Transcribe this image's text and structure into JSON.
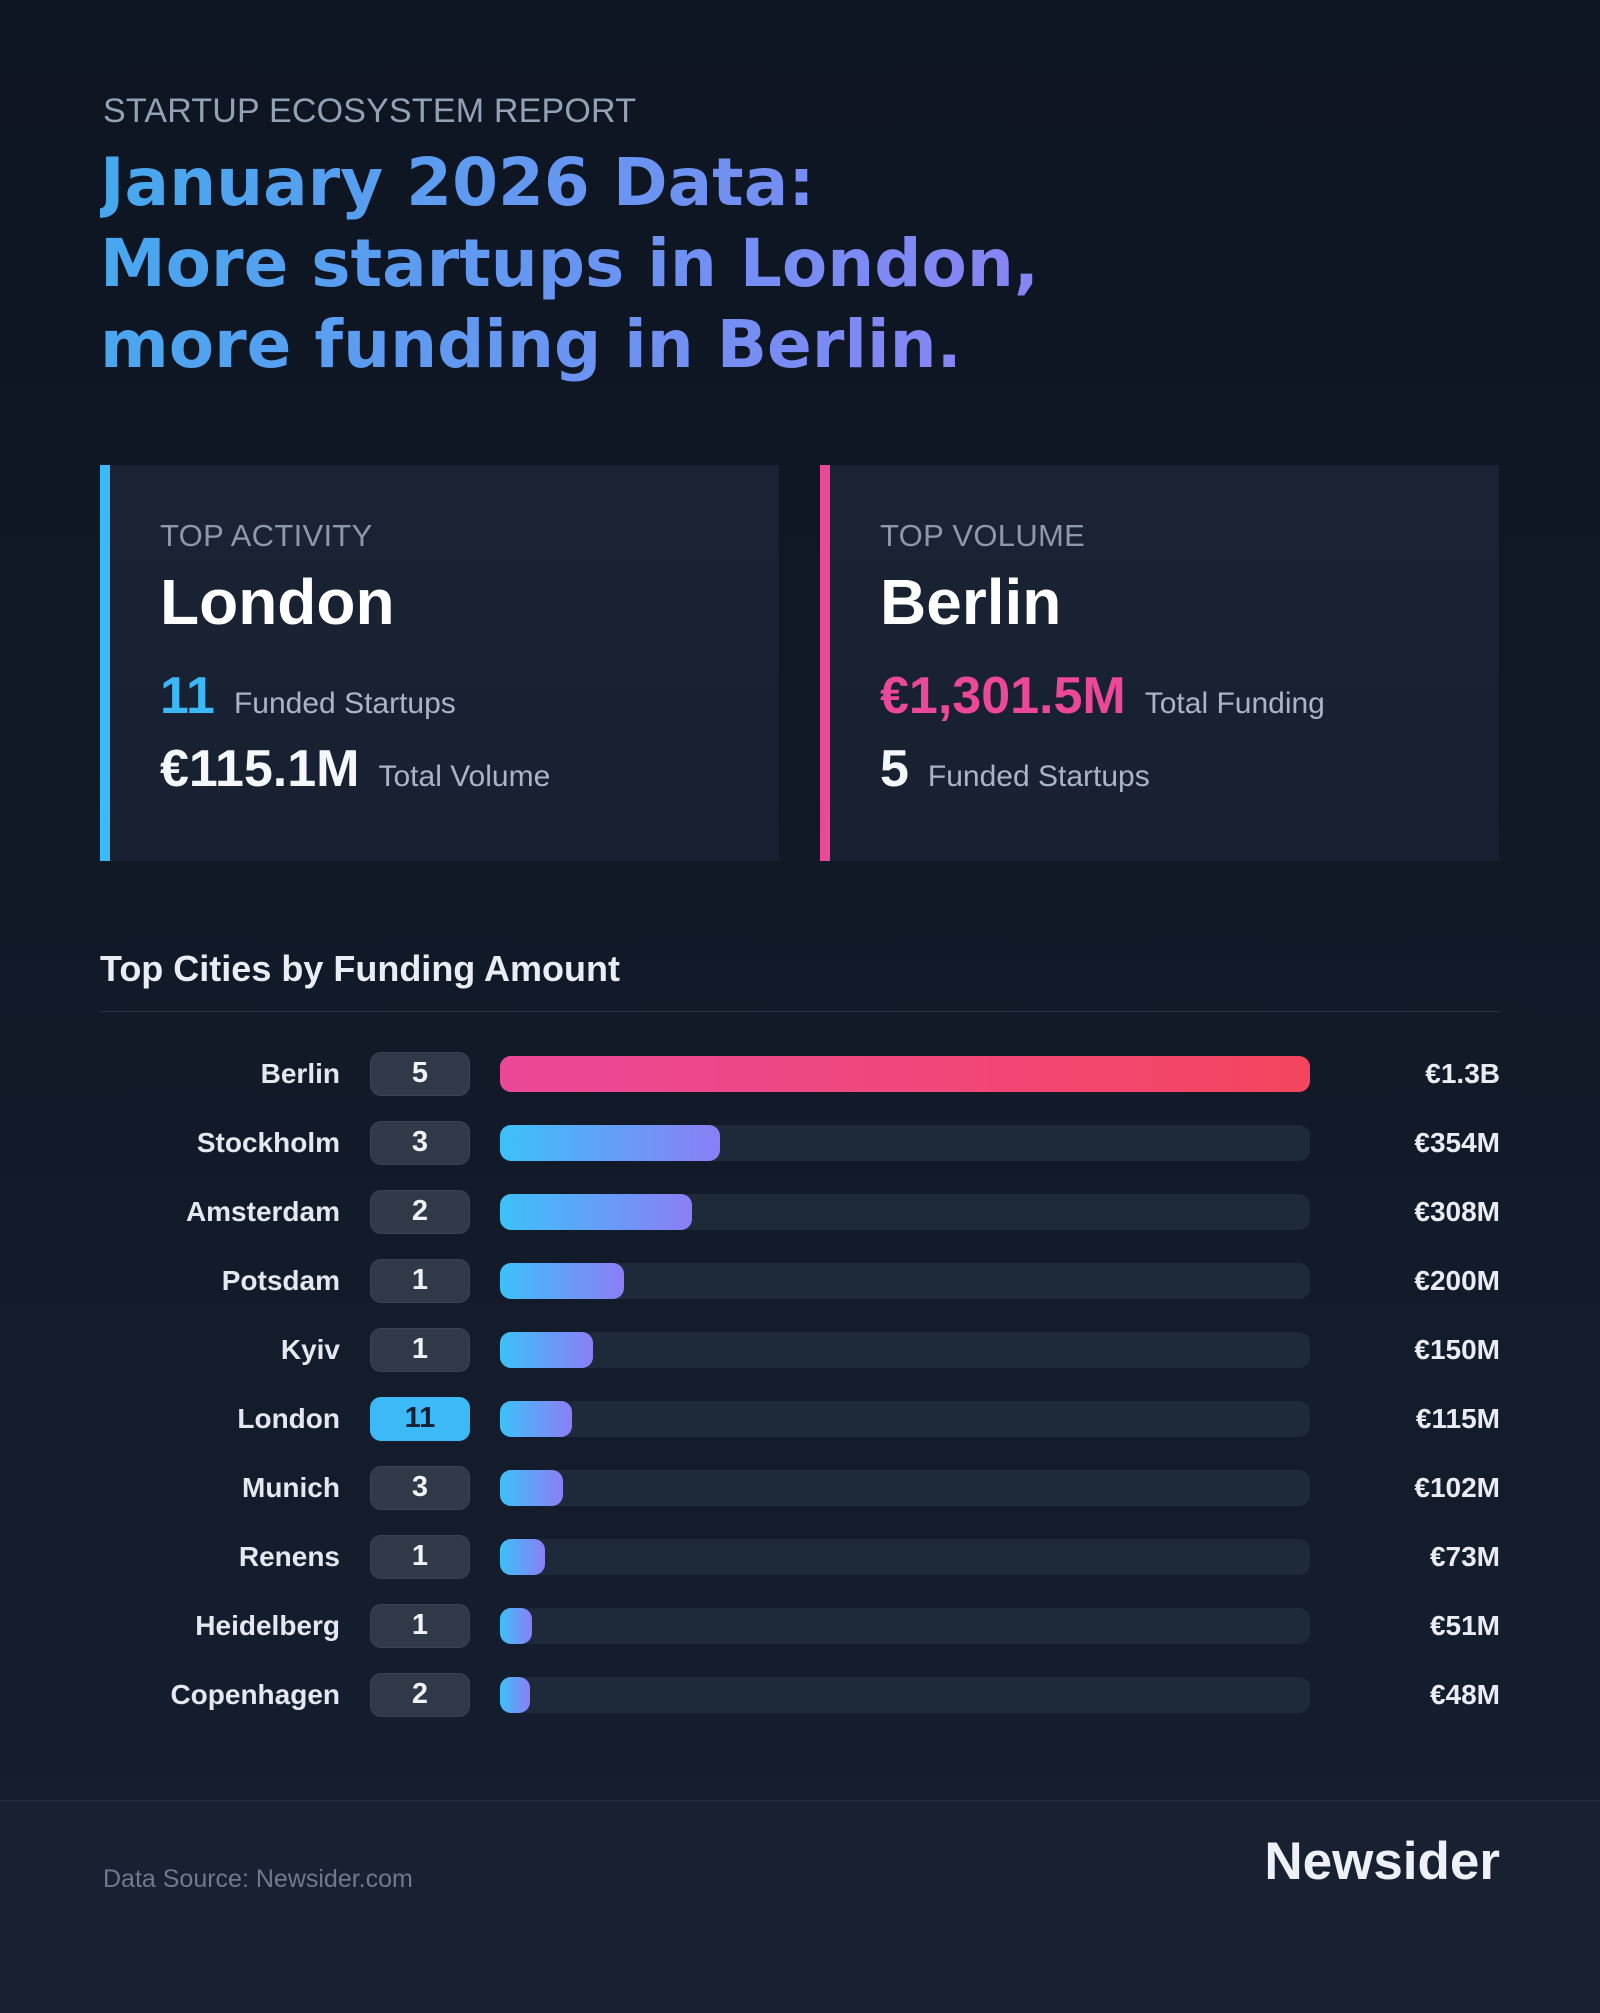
{
  "header": {
    "eyebrow": "STARTUP ECOSYSTEM REPORT",
    "title_lines": [
      "January 2026 Data:",
      "More startups in London,",
      "more funding in Berlin."
    ]
  },
  "cards": [
    {
      "kicker": "TOP ACTIVITY",
      "city": "London",
      "accent_color": "#3cb9f7",
      "stats": [
        {
          "value": "11",
          "label": "Funded Startups",
          "highlight": true
        },
        {
          "value": "€115.1M",
          "label": "Total Volume",
          "highlight": false
        }
      ]
    },
    {
      "kicker": "TOP VOLUME",
      "city": "Berlin",
      "accent_color": "#ec4899",
      "stats": [
        {
          "value": "€1,301.5M",
          "label": "Total Funding",
          "highlight": true
        },
        {
          "value": "5",
          "label": "Funded Startups",
          "highlight": false
        }
      ]
    }
  ],
  "chart_data": {
    "type": "bar",
    "title": "Top Cities by Funding Amount",
    "orientation": "horizontal",
    "categories": [
      "Berlin",
      "Stockholm",
      "Amsterdam",
      "Potsdam",
      "Kyiv",
      "London",
      "Munich",
      "Renens",
      "Heidelberg",
      "Copenhagen"
    ],
    "counts": [
      5,
      3,
      2,
      1,
      1,
      11,
      3,
      1,
      1,
      2
    ],
    "values_millions_eur": [
      1301.5,
      354,
      308,
      200,
      150,
      115.1,
      102,
      73,
      51,
      48
    ],
    "value_labels": [
      "€1.3B",
      "€354M",
      "€308M",
      "€200M",
      "€150M",
      "€115M",
      "€102M",
      "€73M",
      "€51M",
      "€48M"
    ],
    "xlim": [
      0,
      1301.5
    ],
    "highlight_count_category": "London",
    "pink_bar_category": "Berlin",
    "grid": false,
    "legend": false,
    "bar_color_from": "#3cc1f8",
    "bar_color_to": "#8b7ef6",
    "pink_bar_color_from": "#ec4899",
    "pink_bar_color_to": "#f4455e"
  },
  "colors": {
    "accent_blue": "#3cb9f7",
    "accent_pink": "#ec4899",
    "title_gradient_from": "#45a9ee",
    "title_gradient_to": "#8b82f5",
    "background": "#101827"
  },
  "footer": {
    "source": "Data Source: Newsider.com",
    "brand": "Newsider"
  }
}
